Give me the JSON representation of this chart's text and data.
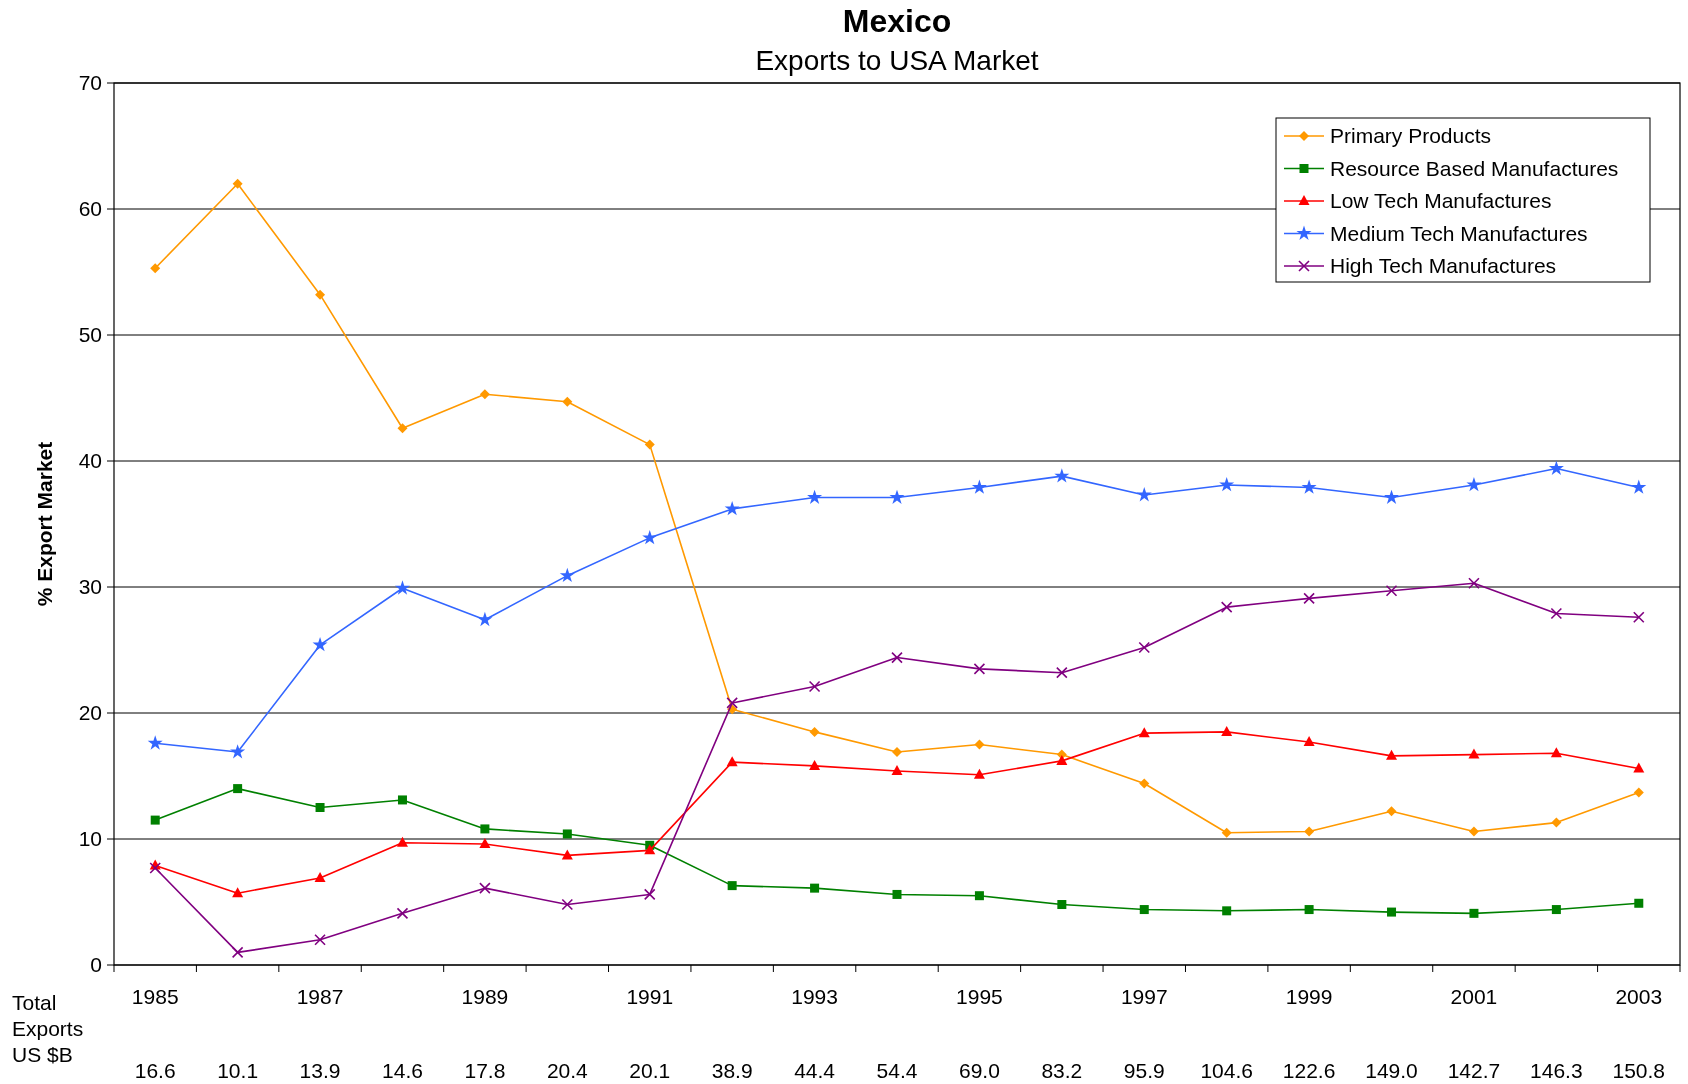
{
  "chart_data": {
    "type": "line",
    "title": "Mexico",
    "subtitle": "Exports to USA Market",
    "ylabel": "% Export Market",
    "categories": [
      "1985",
      null,
      "1987",
      null,
      "1989",
      null,
      "1991",
      null,
      "1993",
      null,
      "1995",
      null,
      "1997",
      null,
      "1999",
      null,
      "2001",
      null,
      "2003"
    ],
    "series": [
      {
        "name": "Primary Products",
        "color": "#ff9900",
        "marker": "diamond",
        "values": [
          55.3,
          62.0,
          53.2,
          42.6,
          45.3,
          44.7,
          41.3,
          20.3,
          18.5,
          16.9,
          17.5,
          16.7,
          14.4,
          10.5,
          10.6,
          12.2,
          10.6,
          11.3,
          13.7
        ]
      },
      {
        "name": "Resource Based Manufactures",
        "color": "#008000",
        "marker": "square",
        "values": [
          11.5,
          14.0,
          12.5,
          13.1,
          10.8,
          10.4,
          9.5,
          6.3,
          6.1,
          5.6,
          5.5,
          4.8,
          4.4,
          4.3,
          4.4,
          4.2,
          4.1,
          4.4,
          4.9
        ]
      },
      {
        "name": "Low Tech Manufactures",
        "color": "#ff0000",
        "marker": "triangle",
        "values": [
          7.9,
          5.7,
          6.9,
          9.7,
          9.6,
          8.7,
          9.1,
          16.1,
          15.8,
          15.4,
          15.1,
          16.2,
          18.4,
          18.5,
          17.7,
          16.6,
          16.7,
          16.8,
          15.6
        ]
      },
      {
        "name": "Medium Tech Manufactures",
        "color": "#3366ff",
        "marker": "star",
        "values": [
          17.6,
          16.9,
          25.4,
          29.9,
          27.4,
          30.9,
          33.9,
          36.2,
          37.1,
          37.1,
          37.9,
          38.8,
          37.3,
          38.1,
          37.9,
          37.1,
          38.1,
          39.4,
          37.9
        ]
      },
      {
        "name": "High Tech Manufactures",
        "color": "#800080",
        "marker": "cross",
        "values": [
          7.7,
          1.0,
          2.0,
          4.1,
          6.1,
          4.8,
          5.6,
          20.8,
          22.1,
          24.4,
          23.5,
          23.2,
          25.2,
          28.4,
          29.1,
          29.7,
          30.3,
          27.9,
          27.6
        ]
      }
    ],
    "ylim": [
      0,
      70
    ],
    "yticks": [
      0,
      10,
      20,
      30,
      40,
      50,
      60,
      70
    ],
    "grid": "y",
    "legend": "top right",
    "annotations": [
      "Total Exports US $B",
      "16.6",
      "10.1",
      "13.9",
      "14.6",
      "17.8",
      "20.4",
      "20.1",
      "38.9",
      "44.4",
      "54.4",
      "69.0",
      "83.2",
      "95.9",
      "104.6",
      "122.6",
      "149.0",
      "142.7",
      "146.3",
      "150.8"
    ]
  }
}
